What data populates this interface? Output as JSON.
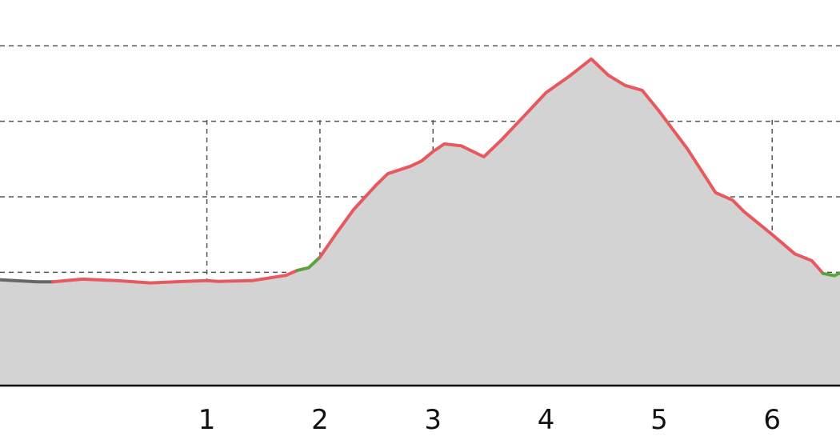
{
  "chart_data": {
    "type": "area",
    "title": "",
    "xlabel": "",
    "ylabel": "",
    "xlim": [
      -0.83,
      6.6
    ],
    "ylim": [
      0,
      100
    ],
    "grid": {
      "x": true,
      "y": true,
      "style": "dashed"
    },
    "x_ticks": [
      1,
      2,
      3,
      4,
      5,
      6
    ],
    "x_tick_labels": [
      "1",
      "2",
      "3",
      "4",
      "5",
      "6"
    ],
    "y_grid_values": [
      10,
      30,
      50,
      70,
      90
    ],
    "fill_color": "#d3d3d3",
    "axis_color": "#000000",
    "grid_color": "#555555",
    "segments": [
      {
        "color": "#666666",
        "points": [
          [
            -0.83,
            28
          ],
          [
            -0.5,
            27.5
          ],
          [
            -0.36,
            27.5
          ]
        ]
      },
      {
        "color": "#e8595f",
        "points": [
          [
            -0.36,
            27.5
          ],
          [
            -0.1,
            28.2
          ],
          [
            0.2,
            27.8
          ],
          [
            0.5,
            27.2
          ],
          [
            0.8,
            27.6
          ],
          [
            1.0,
            27.8
          ],
          [
            1.1,
            27.6
          ],
          [
            1.4,
            27.8
          ],
          [
            1.7,
            29.2
          ],
          [
            1.8,
            30.5
          ]
        ]
      },
      {
        "color": "#5aa33f",
        "points": [
          [
            1.8,
            30.5
          ],
          [
            1.9,
            31.2
          ],
          [
            2.0,
            34.0
          ]
        ]
      },
      {
        "color": "#e8595f",
        "points": [
          [
            2.0,
            34.0
          ],
          [
            2.15,
            40.5
          ],
          [
            2.3,
            46.7
          ],
          [
            2.5,
            53.2
          ],
          [
            2.6,
            56.1
          ],
          [
            2.8,
            58.1
          ],
          [
            2.9,
            59.5
          ],
          [
            3.0,
            62.0
          ],
          [
            3.1,
            64.0
          ],
          [
            3.25,
            63.5
          ],
          [
            3.45,
            60.6
          ],
          [
            3.6,
            64.9
          ],
          [
            3.8,
            71.2
          ],
          [
            4.0,
            77.6
          ],
          [
            4.2,
            81.8
          ],
          [
            4.4,
            86.5
          ],
          [
            4.55,
            82.2
          ],
          [
            4.7,
            79.5
          ],
          [
            4.85,
            78.2
          ],
          [
            5.0,
            72.7
          ],
          [
            5.25,
            62.7
          ],
          [
            5.5,
            51.1
          ],
          [
            5.65,
            49.1
          ],
          [
            5.75,
            46.1
          ],
          [
            6.0,
            40.0
          ],
          [
            6.2,
            34.9
          ],
          [
            6.35,
            33.1
          ],
          [
            6.45,
            29.7
          ]
        ]
      },
      {
        "color": "#5aa33f",
        "points": [
          [
            6.45,
            29.7
          ],
          [
            6.55,
            29.1
          ],
          [
            6.6,
            29.8
          ]
        ]
      }
    ]
  }
}
